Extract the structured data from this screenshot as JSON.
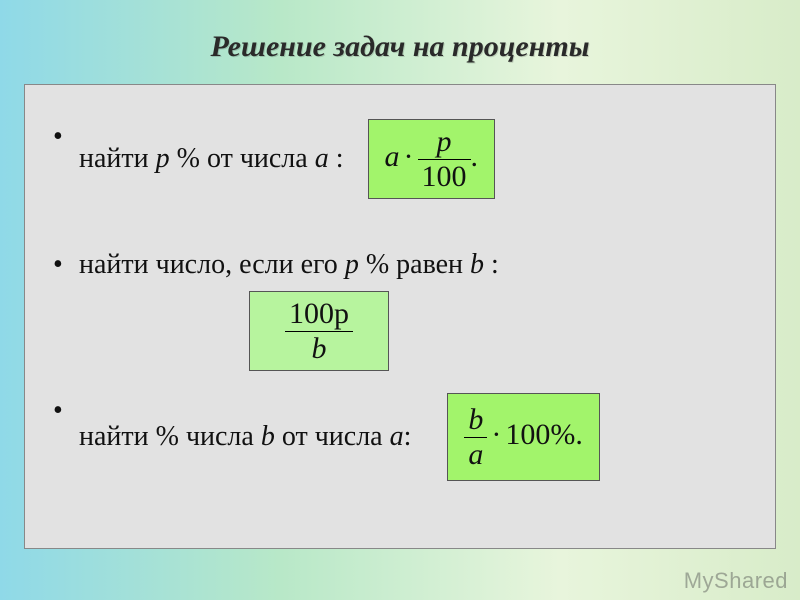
{
  "title": "Решение задач на проценты",
  "bullets": {
    "b1_part1": "найти ",
    "b1_var1": "p",
    "b1_part2": " % от числа ",
    "b1_var2": "a",
    "b1_part3": " :",
    "b2_part1": "найти число, если его ",
    "b2_var1": "p",
    "b2_part2": " % равен ",
    "b2_var2": "b",
    "b2_part3": " :",
    "b3_part1": "найти % числа ",
    "b3_var1": "b",
    "b3_part2": " от числа ",
    "b3_var2": "a",
    "b3_part3": ":"
  },
  "formulas": {
    "f1": {
      "lhs": "a",
      "num": "p",
      "den": "100",
      "trail": "."
    },
    "f2": {
      "num": "100p",
      "den": "b"
    },
    "f3": {
      "num": "b",
      "den": "a",
      "rhs": "100%.",
      "dot": "·"
    }
  },
  "style": {
    "title_fontsize": 30,
    "body_fontsize": 28,
    "formula_fontsize": 30,
    "colors": {
      "gradient_start": "#8fd9e8",
      "gradient_mid1": "#b8e8c8",
      "gradient_mid2": "#e8f5dc",
      "gradient_end": "#d8ecc9",
      "content_bg": "#e2e2e2",
      "content_border": "#888888",
      "formula_bg_bright": "#a2f46b",
      "formula_bg_soft": "#b7f49e",
      "formula_border": "#555555",
      "text": "#111111",
      "watermark": "rgba(80,80,80,0.45)"
    }
  },
  "watermark": "MyShared"
}
